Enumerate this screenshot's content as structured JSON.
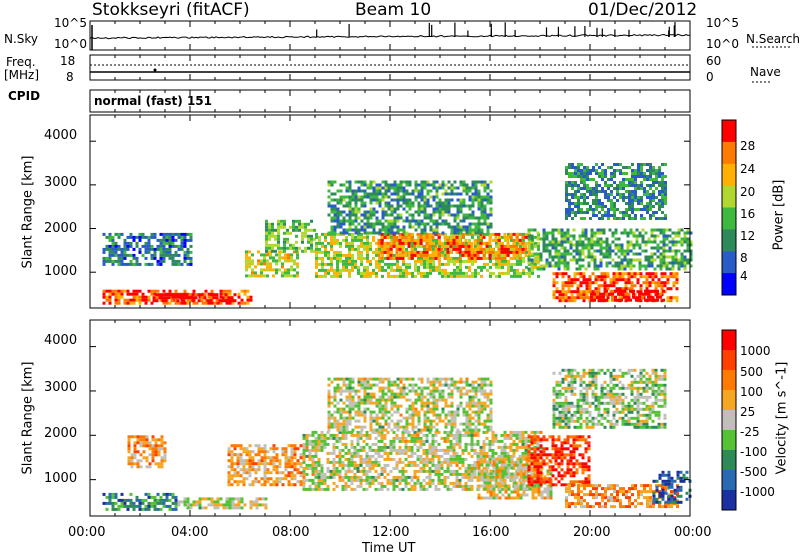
{
  "header": {
    "station": "Stokkseyri (fitACF)",
    "beam": "Beam 10",
    "date": "01/Dec/2012"
  },
  "top_panels": {
    "nsky_label": "N.Sky",
    "nsky_ticks": [
      "10^5",
      "10^0"
    ],
    "nsearch_label": "N.Search",
    "nsearch_ticks": [
      "10^5",
      "10^0"
    ],
    "freq_label_1": "Freq.",
    "freq_label_2": "[MHz]",
    "freq_ticks": [
      "18",
      "8"
    ],
    "nave_label": "Nave",
    "nave_ticks": [
      "60",
      "0"
    ],
    "cpid_label": "CPID",
    "cpid_value": "normal (fast) 151"
  },
  "chart_data": [
    {
      "type": "heatmap",
      "name": "Power panel",
      "ylabel": "Slant Range [km]",
      "ylim": [
        180,
        4600
      ],
      "yticks": [
        "4000",
        "3000",
        "2000",
        "1000"
      ],
      "colorbar_label": "Power [dB]",
      "colorbar_ticks": [
        "28",
        "24",
        "20",
        "16",
        "12",
        "8",
        "4"
      ],
      "colorbar_colors": [
        "#0000ff",
        "#2a5cc8",
        "#2f8a5a",
        "#3fb83f",
        "#b0d830",
        "#ffb000",
        "#ff7a00",
        "#ff0000"
      ],
      "bands": [
        {
          "t0": 0.5,
          "t1": 6.5,
          "r0": 300,
          "r1": 600,
          "level": 0.85
        },
        {
          "t0": 2.5,
          "t1": 5.8,
          "r0": 320,
          "r1": 520,
          "level": 1.0
        },
        {
          "t0": 0.5,
          "t1": 4.0,
          "r0": 1200,
          "r1": 1900,
          "level": 0.25
        },
        {
          "t0": 6.2,
          "t1": 8.3,
          "r0": 900,
          "r1": 1500,
          "level": 0.6
        },
        {
          "t0": 7.0,
          "t1": 9.0,
          "r0": 1500,
          "r1": 2200,
          "level": 0.45
        },
        {
          "t0": 9.0,
          "t1": 18.0,
          "r0": 900,
          "r1": 1900,
          "level": 0.55
        },
        {
          "t0": 11.5,
          "t1": 17.5,
          "r0": 1300,
          "r1": 1900,
          "level": 0.8
        },
        {
          "t0": 9.5,
          "t1": 16.0,
          "r0": 1900,
          "r1": 3100,
          "level": 0.35
        },
        {
          "t0": 17.5,
          "t1": 24.0,
          "r0": 1100,
          "r1": 2000,
          "level": 0.4
        },
        {
          "t0": 18.5,
          "t1": 23.5,
          "r0": 350,
          "r1": 1000,
          "level": 0.85
        },
        {
          "t0": 20.0,
          "t1": 23.0,
          "r0": 350,
          "r1": 600,
          "level": 1.0
        },
        {
          "t0": 19.0,
          "t1": 23.0,
          "r0": 2200,
          "r1": 3500,
          "level": 0.3
        }
      ]
    },
    {
      "type": "heatmap",
      "name": "Velocity panel",
      "ylabel": "Slant Range [km]",
      "ylim": [
        180,
        4600
      ],
      "yticks": [
        "4000",
        "3000",
        "2000",
        "1000"
      ],
      "colorbar_label": "Velocity [m s^-1]",
      "colorbar_ticks": [
        "1000",
        "500",
        "100",
        "25",
        "-25",
        "-100",
        "-500",
        "-1000"
      ],
      "colorbar_colors": [
        "#1a2fa0",
        "#2a6ab0",
        "#2f8a5a",
        "#55c235",
        "#c0c0b8",
        "#f5a623",
        "#ff7a00",
        "#ff4000",
        "#ff0000"
      ],
      "bands": [
        {
          "t0": 0.5,
          "t1": 3.5,
          "r0": 300,
          "r1": 700,
          "level": 0.25
        },
        {
          "t0": 1.5,
          "t1": 3.0,
          "r0": 1300,
          "r1": 2000,
          "level": 0.65
        },
        {
          "t0": 3.5,
          "t1": 7.0,
          "r0": 350,
          "r1": 600,
          "level": 0.5
        },
        {
          "t0": 5.5,
          "t1": 8.5,
          "r0": 900,
          "r1": 1800,
          "level": 0.65
        },
        {
          "t0": 8.5,
          "t1": 18.0,
          "r0": 800,
          "r1": 2100,
          "level": 0.5
        },
        {
          "t0": 9.5,
          "t1": 16.0,
          "r0": 2100,
          "r1": 3300,
          "level": 0.5
        },
        {
          "t0": 15.5,
          "t1": 18.5,
          "r0": 600,
          "r1": 1500,
          "level": 0.55
        },
        {
          "t0": 17.5,
          "t1": 20.0,
          "r0": 900,
          "r1": 2000,
          "level": 0.85
        },
        {
          "t0": 19.0,
          "t1": 23.5,
          "r0": 400,
          "r1": 900,
          "level": 0.7
        },
        {
          "t0": 22.5,
          "t1": 24.0,
          "r0": 500,
          "r1": 1200,
          "level": 0.1
        },
        {
          "t0": 18.5,
          "t1": 23.0,
          "r0": 2200,
          "r1": 3500,
          "level": 0.45
        }
      ]
    }
  ],
  "time_axis": {
    "label": "Time UT",
    "ticks": [
      "00:00",
      "04:00",
      "08:00",
      "12:00",
      "16:00",
      "20:00",
      "00:00"
    ]
  }
}
